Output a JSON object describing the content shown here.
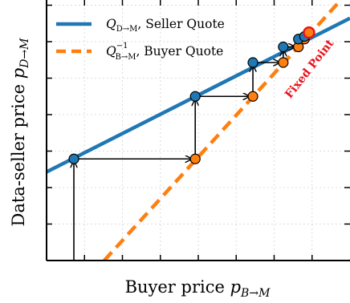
{
  "chart_data": {
    "type": "line",
    "xlabel": "Buyer price p_{B→M}",
    "ylabel": "Data-seller price p_{D→M}",
    "x_ticks_labelled": false,
    "y_ticks_labelled": false,
    "xlim": [
      0,
      1
    ],
    "ylim": [
      0,
      1
    ],
    "grid": true,
    "legend_position": "upper-left",
    "series": [
      {
        "name": "Q_{D→M}, Seller Quote",
        "style": "solid",
        "color": "#1f77b4",
        "x": [
          0,
          1
        ],
        "y": [
          0.34,
          0.93
        ]
      },
      {
        "name": "Q^{-1}_{B→M}, Buyer Quote",
        "style": "dashed",
        "color": "#ff7f0e",
        "x": [
          0.19,
          0.97
        ],
        "y": [
          0.0,
          1.0
        ]
      }
    ],
    "iterates_seller": [
      {
        "x": 0.09,
        "y": 0.39
      },
      {
        "x": 0.49,
        "y": 0.63
      },
      {
        "x": 0.68,
        "y": 0.76
      },
      {
        "x": 0.78,
        "y": 0.82
      },
      {
        "x": 0.83,
        "y": 0.85
      },
      {
        "x": 0.85,
        "y": 0.86
      }
    ],
    "iterates_buyer": [
      {
        "x": 0.49,
        "y": 0.39
      },
      {
        "x": 0.68,
        "y": 0.63
      },
      {
        "x": 0.78,
        "y": 0.76
      },
      {
        "x": 0.83,
        "y": 0.82
      },
      {
        "x": 0.85,
        "y": 0.85
      }
    ],
    "fixed_point": {
      "x": 0.865,
      "y": 0.875,
      "label": "Fixed Point"
    },
    "colors": {
      "seller": "#1f77b4",
      "buyer": "#ff7f0e",
      "fixed_point": "#e8141c"
    }
  }
}
